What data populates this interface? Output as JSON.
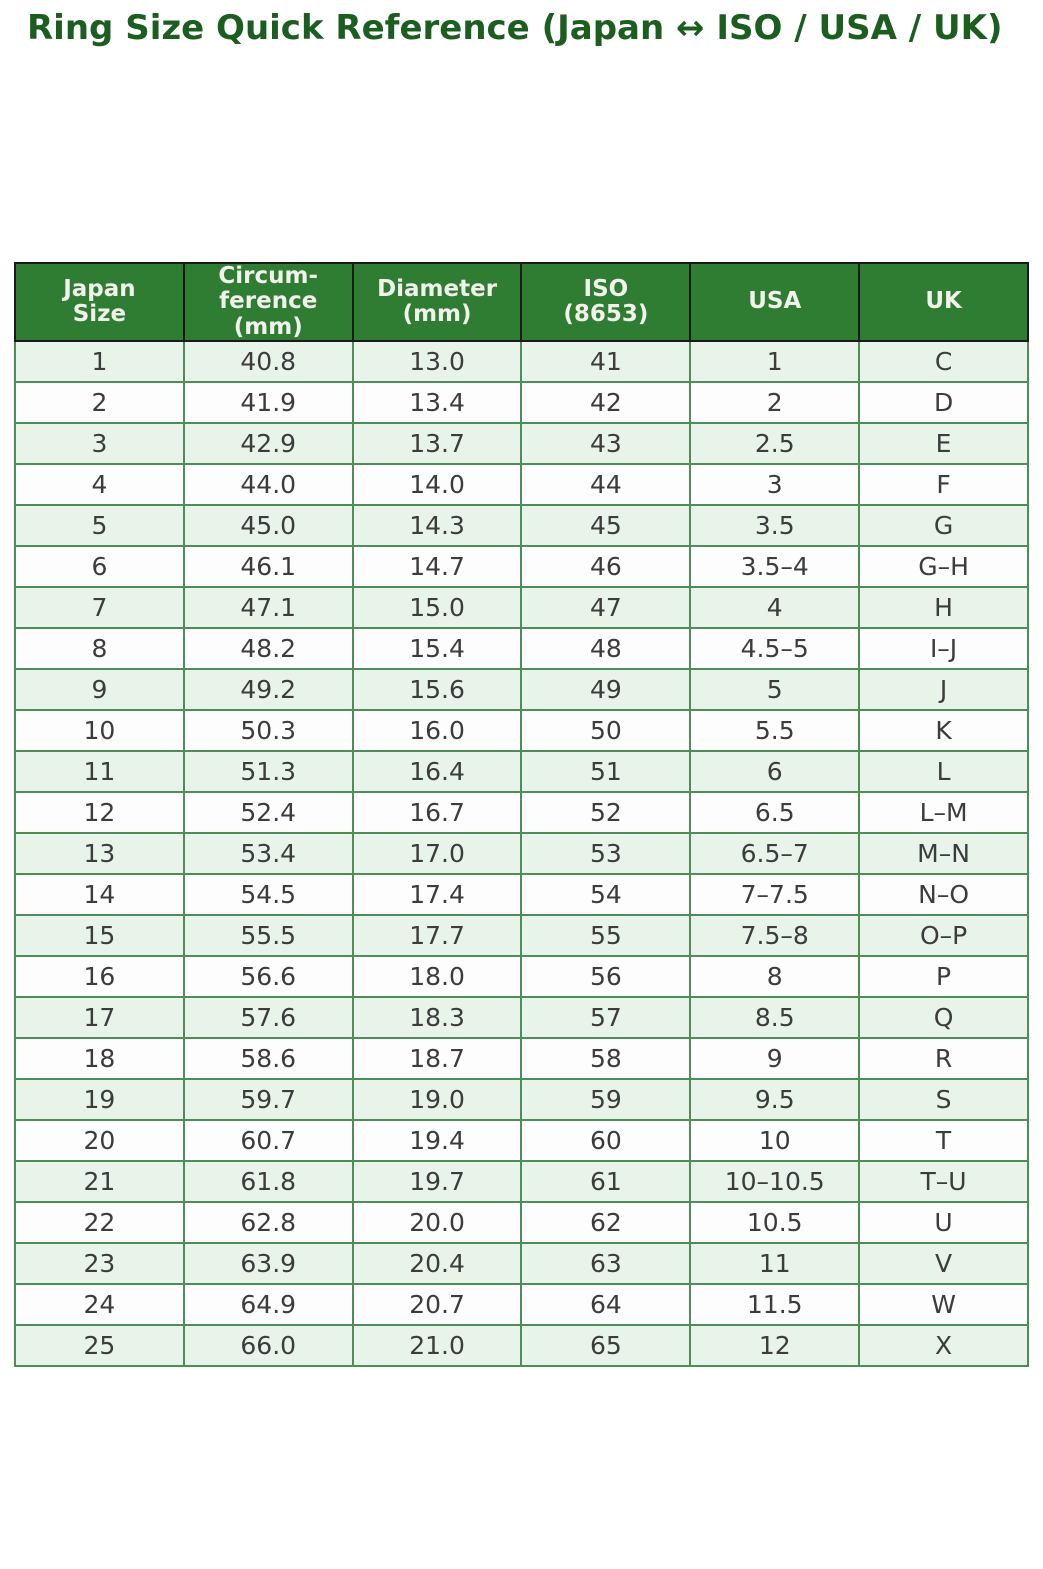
{
  "page": {
    "title": "Ring Size Quick Reference (Japan ↔ ISO / USA / UK)"
  },
  "chart_data": {
    "type": "table",
    "title": "Ring Size Quick Reference (Japan ↔ ISO / USA / UK)",
    "columns_display": [
      "Japan\nSize",
      "Circum-\nference\n(mm)",
      "Diameter\n(mm)",
      "ISO\n(8653)",
      "USA",
      "UK"
    ],
    "columns": [
      "Japan Size",
      "Circumference (mm)",
      "Diameter (mm)",
      "ISO (8653)",
      "USA",
      "UK"
    ],
    "rows": [
      [
        "1",
        "40.8",
        "13.0",
        "41",
        "1",
        "C"
      ],
      [
        "2",
        "41.9",
        "13.4",
        "42",
        "2",
        "D"
      ],
      [
        "3",
        "42.9",
        "13.7",
        "43",
        "2.5",
        "E"
      ],
      [
        "4",
        "44.0",
        "14.0",
        "44",
        "3",
        "F"
      ],
      [
        "5",
        "45.0",
        "14.3",
        "45",
        "3.5",
        "G"
      ],
      [
        "6",
        "46.1",
        "14.7",
        "46",
        "3.5–4",
        "G–H"
      ],
      [
        "7",
        "47.1",
        "15.0",
        "47",
        "4",
        "H"
      ],
      [
        "8",
        "48.2",
        "15.4",
        "48",
        "4.5–5",
        "I–J"
      ],
      [
        "9",
        "49.2",
        "15.6",
        "49",
        "5",
        "J"
      ],
      [
        "10",
        "50.3",
        "16.0",
        "50",
        "5.5",
        "K"
      ],
      [
        "11",
        "51.3",
        "16.4",
        "51",
        "6",
        "L"
      ],
      [
        "12",
        "52.4",
        "16.7",
        "52",
        "6.5",
        "L–M"
      ],
      [
        "13",
        "53.4",
        "17.0",
        "53",
        "6.5–7",
        "M–N"
      ],
      [
        "14",
        "54.5",
        "17.4",
        "54",
        "7–7.5",
        "N–O"
      ],
      [
        "15",
        "55.5",
        "17.7",
        "55",
        "7.5–8",
        "O–P"
      ],
      [
        "16",
        "56.6",
        "18.0",
        "56",
        "8",
        "P"
      ],
      [
        "17",
        "57.6",
        "18.3",
        "57",
        "8.5",
        "Q"
      ],
      [
        "18",
        "58.6",
        "18.7",
        "58",
        "9",
        "R"
      ],
      [
        "19",
        "59.7",
        "19.0",
        "59",
        "9.5",
        "S"
      ],
      [
        "20",
        "60.7",
        "19.4",
        "60",
        "10",
        "T"
      ],
      [
        "21",
        "61.8",
        "19.7",
        "61",
        "10–10.5",
        "T–U"
      ],
      [
        "22",
        "62.8",
        "20.0",
        "62",
        "10.5",
        "U"
      ],
      [
        "23",
        "63.9",
        "20.4",
        "63",
        "11",
        "V"
      ],
      [
        "24",
        "64.9",
        "20.7",
        "64",
        "11.5",
        "W"
      ],
      [
        "25",
        "66.0",
        "21.0",
        "65",
        "12",
        "X"
      ]
    ]
  },
  "colors": {
    "title_text": "#1b5e20",
    "header_bg": "#2f7d33",
    "header_text": "#f2f1ec",
    "row_alt": "#e8f3e9",
    "row_plain": "#fcfdfc",
    "border_green": "#4e8d57",
    "border_dark": "#1a1a1a",
    "cell_text": "#3c3c3c"
  }
}
